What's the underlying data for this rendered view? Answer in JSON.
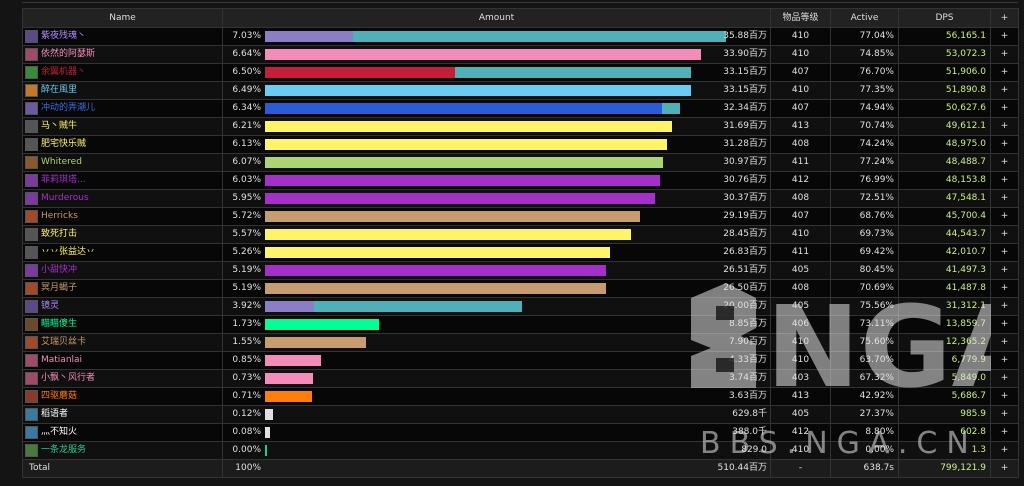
{
  "headers": [
    "Name",
    "Amount",
    "物品等级",
    "Active",
    "DPS",
    "+"
  ],
  "rows": [
    {
      "name": "紫夜残魂丶",
      "name_color": "#b38cff",
      "icon_color": "#5a4a8a",
      "pct": "7.03%",
      "amount": "35.88百万",
      "bar": [
        {
          "c": "#8c7ec4",
          "v": 0.19
        },
        {
          "c": "#4fb0b8",
          "v": 0.81
        }
      ],
      "bar_frac": 1.0,
      "ilvl": "410",
      "active": "77.04%",
      "dps": "56,165.1",
      "plus": "+"
    },
    {
      "name": "依然的阿瑟斯",
      "name_color": "#f48cba",
      "icon_color": "#a04a6a",
      "pct": "6.64%",
      "amount": "33.90百万",
      "bar": [
        {
          "c": "#f48cba",
          "v": 1.0
        }
      ],
      "bar_frac": 0.945,
      "ilvl": "410",
      "active": "74.85%",
      "dps": "53,072.3",
      "plus": "+"
    },
    {
      "name": "余翼机器丶",
      "name_color": "#c41e3a",
      "icon_color": "#3a8a3a",
      "pct": "6.50%",
      "amount": "33.15百万",
      "bar": [
        {
          "c": "#c41e3a",
          "v": 0.445
        },
        {
          "c": "#4fb0b8",
          "v": 0.555
        }
      ],
      "bar_frac": 0.924,
      "ilvl": "407",
      "active": "76.70%",
      "dps": "51,906.0",
      "plus": "+"
    },
    {
      "name": "醉在風里",
      "name_color": "#69ccf0",
      "icon_color": "#c07a2a",
      "pct": "6.49%",
      "amount": "33.15百万",
      "bar": [
        {
          "c": "#69ccf0",
          "v": 1.0
        }
      ],
      "bar_frac": 0.924,
      "ilvl": "410",
      "active": "77.35%",
      "dps": "51,890.8",
      "plus": "+"
    },
    {
      "name": "冲动的弄潮儿",
      "name_color": "#3b6be0",
      "icon_color": "#6a5aa0",
      "pct": "6.34%",
      "amount": "32.34百万",
      "bar": [
        {
          "c": "#2b5cd6",
          "v": 0.955
        },
        {
          "c": "#4fb0b8",
          "v": 0.045
        }
      ],
      "bar_frac": 0.901,
      "ilvl": "407",
      "active": "74.94%",
      "dps": "50,627.6",
      "plus": "+"
    },
    {
      "name": "马丶贼牛",
      "name_color": "#fff468",
      "icon_color": "#555555",
      "pct": "6.21%",
      "amount": "31.69百万",
      "bar": [
        {
          "c": "#fff468",
          "v": 1.0
        }
      ],
      "bar_frac": 0.883,
      "ilvl": "413",
      "active": "70.74%",
      "dps": "49,612.1",
      "plus": "+"
    },
    {
      "name": "肥宅快乐贼",
      "name_color": "#fff468",
      "icon_color": "#555555",
      "pct": "6.13%",
      "amount": "31.28百万",
      "bar": [
        {
          "c": "#fff468",
          "v": 1.0
        }
      ],
      "bar_frac": 0.872,
      "ilvl": "408",
      "active": "74.24%",
      "dps": "48,975.0",
      "plus": "+"
    },
    {
      "name": "Whitered",
      "name_color": "#abd473",
      "icon_color": "#8a5a2a",
      "pct": "6.07%",
      "amount": "30.97百万",
      "bar": [
        {
          "c": "#abd473",
          "v": 1.0
        }
      ],
      "bar_frac": 0.863,
      "ilvl": "411",
      "active": "77.24%",
      "dps": "48,488.7",
      "plus": "+"
    },
    {
      "name": "菲莉琪塔...",
      "name_color": "#a330c9",
      "icon_color": "#7a3aa0",
      "pct": "6.03%",
      "amount": "30.76百万",
      "bar": [
        {
          "c": "#a330c9",
          "v": 1.0
        }
      ],
      "bar_frac": 0.857,
      "ilvl": "412",
      "active": "76.99%",
      "dps": "48,153.8",
      "plus": "+"
    },
    {
      "name": "Murderous",
      "name_color": "#a330c9",
      "icon_color": "#7a3aa0",
      "pct": "5.95%",
      "amount": "30.37百万",
      "bar": [
        {
          "c": "#a330c9",
          "v": 1.0
        }
      ],
      "bar_frac": 0.846,
      "ilvl": "408",
      "active": "72.51%",
      "dps": "47,548.1",
      "plus": "+"
    },
    {
      "name": "Herricks",
      "name_color": "#c79c6e",
      "icon_color": "#a04a2a",
      "pct": "5.72%",
      "amount": "29.19百万",
      "bar": [
        {
          "c": "#c79c6e",
          "v": 1.0
        }
      ],
      "bar_frac": 0.814,
      "ilvl": "407",
      "active": "68.76%",
      "dps": "45,700.4",
      "plus": "+"
    },
    {
      "name": "致死打击",
      "name_color": "#fff468",
      "icon_color": "#555555",
      "pct": "5.57%",
      "amount": "28.45百万",
      "bar": [
        {
          "c": "#fff468",
          "v": 1.0
        }
      ],
      "bar_frac": 0.793,
      "ilvl": "410",
      "active": "69.73%",
      "dps": "44,543.7",
      "plus": "+"
    },
    {
      "name": "丷丷张益达丷",
      "name_color": "#fff468",
      "icon_color": "#555555",
      "pct": "5.26%",
      "amount": "26.83百万",
      "bar": [
        {
          "c": "#fff468",
          "v": 1.0
        }
      ],
      "bar_frac": 0.748,
      "ilvl": "411",
      "active": "69.42%",
      "dps": "42,010.7",
      "plus": "+"
    },
    {
      "name": "小甜快冲",
      "name_color": "#a330c9",
      "icon_color": "#7a3aa0",
      "pct": "5.19%",
      "amount": "26.51百万",
      "bar": [
        {
          "c": "#a330c9",
          "v": 1.0
        }
      ],
      "bar_frac": 0.739,
      "ilvl": "405",
      "active": "80.45%",
      "dps": "41,497.3",
      "plus": "+"
    },
    {
      "name": "冥月蝎子",
      "name_color": "#c79c6e",
      "icon_color": "#a04a2a",
      "pct": "5.19%",
      "amount": "26.50百万",
      "bar": [
        {
          "c": "#c79c6e",
          "v": 1.0
        }
      ],
      "bar_frac": 0.739,
      "ilvl": "408",
      "active": "70.69%",
      "dps": "41,487.8",
      "plus": "+"
    },
    {
      "name": "镜灵",
      "name_color": "#b38cff",
      "icon_color": "#5a4a8a",
      "pct": "3.92%",
      "amount": "20.00百万",
      "bar": [
        {
          "c": "#8c7ec4",
          "v": 0.19
        },
        {
          "c": "#4fb0b8",
          "v": 0.81
        }
      ],
      "bar_frac": 0.557,
      "ilvl": "405",
      "active": "75.56%",
      "dps": "31,312.1",
      "plus": "+"
    },
    {
      "name": "瞄瞄傻生",
      "name_color": "#00ff96",
      "icon_color": "#6a4a2a",
      "pct": "1.73%",
      "amount": "8.85百万",
      "bar": [
        {
          "c": "#00ff96",
          "v": 1.0
        }
      ],
      "bar_frac": 0.247,
      "ilvl": "406",
      "active": "73.11%",
      "dps": "13,859.7",
      "plus": "+"
    },
    {
      "name": "艾瑞贝丝卡",
      "name_color": "#c79c6e",
      "icon_color": "#a04a2a",
      "pct": "1.55%",
      "amount": "7.90百万",
      "bar": [
        {
          "c": "#c79c6e",
          "v": 1.0
        }
      ],
      "bar_frac": 0.22,
      "ilvl": "410",
      "active": "75.60%",
      "dps": "12,365.2",
      "plus": "+"
    },
    {
      "name": "Matianlai",
      "name_color": "#f48cba",
      "icon_color": "#a04a6a",
      "pct": "0.85%",
      "amount": "4.33百万",
      "bar": [
        {
          "c": "#f48cba",
          "v": 1.0
        }
      ],
      "bar_frac": 0.121,
      "ilvl": "410",
      "active": "63.70%",
      "dps": "6,779.9",
      "plus": "+"
    },
    {
      "name": "小飘丶风行者",
      "name_color": "#f48cba",
      "icon_color": "#a04a6a",
      "pct": "0.73%",
      "amount": "3.74百万",
      "bar": [
        {
          "c": "#f48cba",
          "v": 1.0
        }
      ],
      "bar_frac": 0.104,
      "ilvl": "403",
      "active": "67.32%",
      "dps": "5,849.0",
      "plus": "+"
    },
    {
      "name": "四驱蘑菇",
      "name_color": "#ff7d0a",
      "icon_color": "#8a3a2a",
      "pct": "0.71%",
      "amount": "3.63百万",
      "bar": [
        {
          "c": "#ff7d0a",
          "v": 1.0
        }
      ],
      "bar_frac": 0.101,
      "ilvl": "413",
      "active": "42.92%",
      "dps": "5,686.7",
      "plus": "+"
    },
    {
      "name": "稻语者",
      "name_color": "#ffffff",
      "icon_color": "#3a7aa0",
      "pct": "0.12%",
      "amount": "629.8千",
      "bar": [
        {
          "c": "#e0e0e0",
          "v": 1.0
        }
      ],
      "bar_frac": 0.018,
      "ilvl": "405",
      "active": "27.37%",
      "dps": "985.9",
      "plus": "+"
    },
    {
      "name": "灬不知火",
      "name_color": "#ffffff",
      "icon_color": "#3a7aa0",
      "pct": "0.08%",
      "amount": "388.0千",
      "bar": [
        {
          "c": "#e0e0e0",
          "v": 1.0
        }
      ],
      "bar_frac": 0.011,
      "ilvl": "412",
      "active": "8.80%",
      "dps": "602.8",
      "plus": "+"
    },
    {
      "name": "一条龙服务",
      "name_color": "#2ec58a",
      "icon_color": "#4a7a3a",
      "pct": "0.00%",
      "amount": "829.0",
      "bar": [
        {
          "c": "#2ec58a",
          "v": 1.0
        }
      ],
      "bar_frac": 0.002,
      "ilvl": "410",
      "active": "0.00%",
      "dps": "1.3",
      "plus": "+"
    }
  ],
  "total": {
    "label": "Total",
    "pct": "100%",
    "amount": "510.44百万",
    "ilvl": "-",
    "active": "638.7s",
    "dps": "799,121.9",
    "plus": "+"
  },
  "watermark": {
    "logo": "NGA",
    "text": "BBS.NGA.CN"
  }
}
